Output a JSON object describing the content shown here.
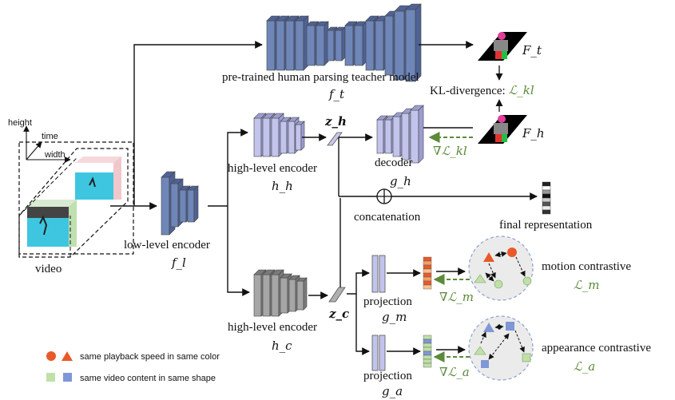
{
  "labels": {
    "teacher": "pre-trained human parsing teacher model",
    "teacher_sym": "f_t",
    "ft": "F_t",
    "fh": "F_h",
    "kl": "KL-divergence: ",
    "kl_sym": "ℒ_kl",
    "zh": "z_h",
    "zc": "z_c",
    "decoder": "decoder",
    "gh": "g_h",
    "grad_kl": "∇ℒ_kl",
    "high_enc": "high-level encoder",
    "hh": "h_h",
    "hc": "h_c",
    "low_enc": "low-level encoder",
    "fl": "f_l",
    "concat": "concatenation",
    "final": "final representation",
    "video": "video",
    "height": "height",
    "time": "time",
    "width": "width",
    "projection_m": "projection",
    "gm": "g_m",
    "projection_a": "projection",
    "ga": "g_a",
    "grad_m": "∇ℒ_m",
    "grad_a": "∇ℒ_a",
    "motion": "motion contrastive",
    "lm": "ℒ_m",
    "appearance": "appearance contrastive",
    "la": "ℒ_a"
  },
  "legend": [
    {
      "text": "same playback speed in same color"
    },
    {
      "text": "same video content in same shape"
    }
  ],
  "colors": {
    "teacher_blue": "#6f86b8",
    "decoder_purple": "#c3c4ec",
    "encoder_gray": "#9a9a9a",
    "arrow": "#111111",
    "green_text": "#5a8a3a",
    "red": "#e85a2a",
    "green_sq": "#bfe0a8",
    "blue_sq": "#7f97d6"
  }
}
